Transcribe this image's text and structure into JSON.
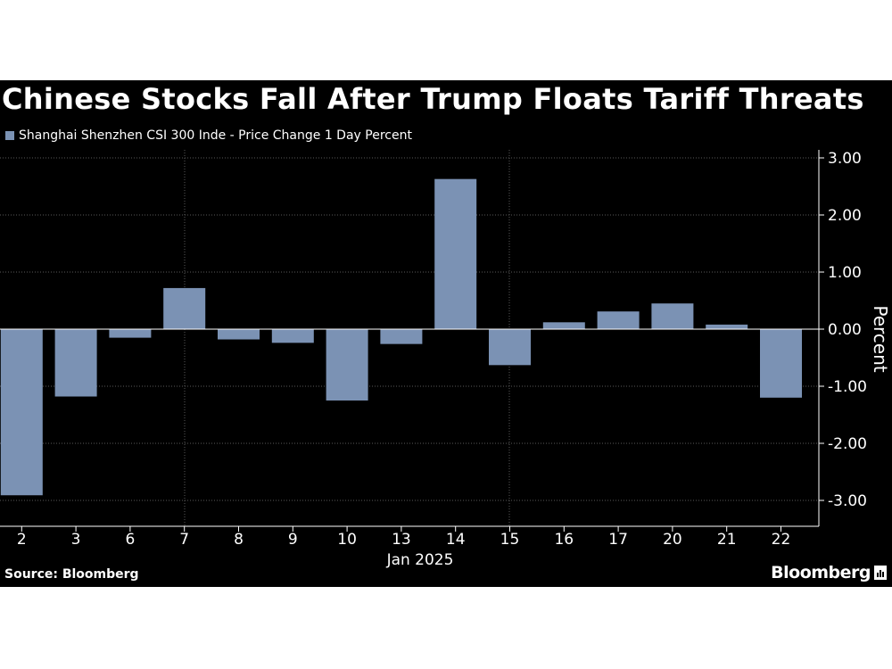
{
  "title": "Chinese Stocks Fall After Trump Floats Tariff Threats",
  "legend_label": "Shanghai Shenzhen CSI 300 Inde - Price Change 1 Day Percent",
  "source": "Source: Bloomberg",
  "brand": "Bloomberg",
  "brand_icon": "bar-chart-icon",
  "colors": {
    "background": "#000000",
    "bar": "#7b92b4",
    "text": "#ffffff",
    "grid": "#5a5a5a"
  },
  "chart_data": {
    "type": "bar",
    "title": "Chinese Stocks Fall After Trump Floats Tariff Threats",
    "categories": [
      "2",
      "3",
      "6",
      "7",
      "8",
      "9",
      "10",
      "13",
      "14",
      "15",
      "16",
      "17",
      "20",
      "21",
      "22"
    ],
    "series": [
      {
        "name": "Shanghai Shenzhen CSI 300 Inde - Price Change 1 Day Percent",
        "values": [
          -2.91,
          -1.18,
          -0.15,
          0.72,
          -0.18,
          -0.24,
          -1.25,
          -0.26,
          2.63,
          -0.63,
          0.12,
          0.31,
          0.45,
          0.08,
          -1.2
        ]
      }
    ],
    "xlabel": "Jan 2025",
    "ylabel": "Percent",
    "ylim": [
      -3.5,
      3.2
    ],
    "yticks": [
      3,
      2,
      1,
      0,
      -1,
      -2,
      -3
    ],
    "ytick_labels": [
      "3.00",
      "2.00",
      "1.00",
      "0.00",
      "-1.00",
      "-2.00",
      "-3.00"
    ],
    "grid": true,
    "legend_position": "top-left",
    "y_axis_side": "right"
  }
}
